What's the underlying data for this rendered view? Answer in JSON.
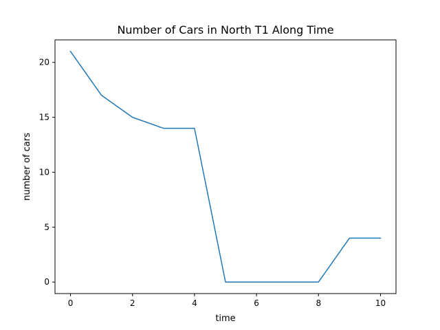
{
  "chart_data": {
    "type": "line",
    "title": "Number of Cars in North T1 Along Time",
    "xlabel": "time",
    "ylabel": "number of cars",
    "x": [
      0,
      1,
      2,
      3,
      4,
      5,
      6,
      7,
      8,
      9,
      10
    ],
    "series": [
      {
        "values": [
          21,
          17,
          15,
          14,
          14,
          0,
          0,
          0,
          0,
          4,
          4
        ]
      }
    ],
    "xlim": [
      -0.5,
      10.5
    ],
    "ylim": [
      -1.05,
      22.05
    ],
    "xticks": [
      0,
      2,
      4,
      6,
      8,
      10
    ],
    "yticks": [
      0,
      5,
      10,
      15,
      20
    ],
    "grid": false,
    "line_color": "#1f77b4"
  }
}
